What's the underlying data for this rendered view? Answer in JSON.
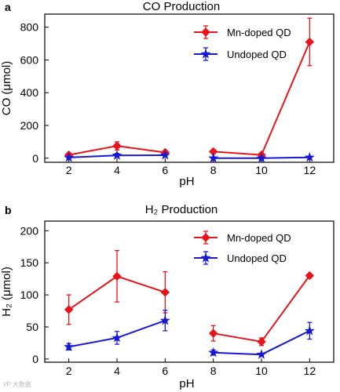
{
  "watermark": "I/P 大数据",
  "chart_data": [
    {
      "type": "line",
      "panel_label": "a",
      "title": "CO Production",
      "xlabel": "pH",
      "ylabel": "CO (μmol)",
      "x": [
        2,
        4,
        6,
        8,
        10,
        12
      ],
      "x_tick_labels": [
        "2",
        "4",
        "6",
        "8",
        "10",
        "12"
      ],
      "xlim": [
        1,
        13
      ],
      "ylim": [
        -25,
        880
      ],
      "y_ticks": [
        0,
        200,
        400,
        600,
        800
      ],
      "grid": false,
      "legend_position": "top-right",
      "segments": [
        [
          2,
          4,
          6
        ],
        [
          8,
          10,
          12
        ]
      ],
      "series": [
        {
          "name": "Mn-doped QD",
          "color": "#e8141b",
          "marker": "diamond",
          "values": [
            20,
            75,
            35,
            40,
            20,
            710
          ],
          "errors": [
            10,
            25,
            12,
            10,
            8,
            145
          ]
        },
        {
          "name": "Undoped QD",
          "color": "#1717d6",
          "marker": "star",
          "values": [
            4,
            17,
            18,
            0,
            0,
            5
          ],
          "errors": [
            4,
            12,
            8,
            3,
            3,
            4
          ]
        }
      ]
    },
    {
      "type": "line",
      "panel_label": "b",
      "title": "H₂ Production",
      "xlabel": "pH",
      "ylabel": "H₂ (μmol)",
      "x": [
        2,
        4,
        6,
        8,
        10,
        12
      ],
      "x_tick_labels": [
        "2",
        "4",
        "6",
        "8",
        "10",
        "12"
      ],
      "xlim": [
        1,
        13
      ],
      "ylim": [
        -5,
        215
      ],
      "y_ticks": [
        0,
        50,
        100,
        150,
        200
      ],
      "grid": false,
      "legend_position": "top-right",
      "segments": [
        [
          2,
          4,
          6
        ],
        [
          8,
          10,
          12
        ]
      ],
      "series": [
        {
          "name": "Mn-doped QD",
          "color": "#e8141b",
          "marker": "diamond",
          "values": [
            77,
            129,
            104,
            40,
            27,
            130
          ],
          "errors": [
            23,
            40,
            32,
            12,
            6,
            2
          ]
        },
        {
          "name": "Undoped QD",
          "color": "#1717d6",
          "marker": "star",
          "values": [
            19,
            33,
            60,
            10,
            7,
            44
          ],
          "errors": [
            5,
            10,
            16,
            4,
            2,
            13
          ]
        }
      ]
    }
  ]
}
